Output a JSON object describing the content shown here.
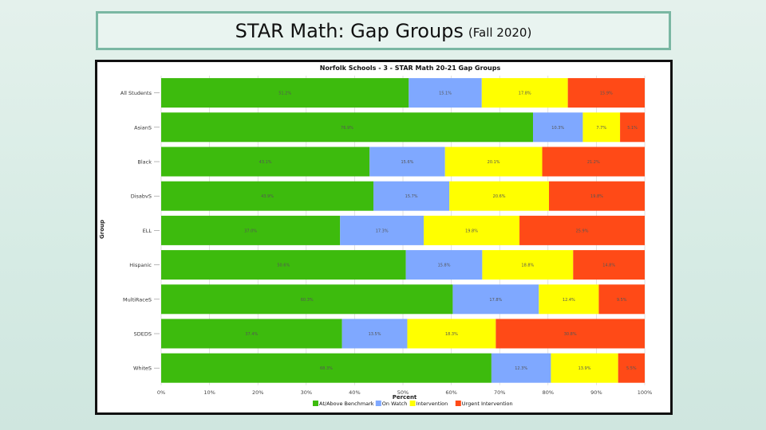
{
  "slide": {
    "title": "STAR Math: Gap Groups",
    "subtitle": "(Fall 2020)"
  },
  "chart_data": {
    "type": "bar",
    "orientation": "horizontal",
    "stacked": true,
    "title": "Norfolk Schools - 3 - STAR Math 20-21 Gap Groups",
    "xlabel": "Percent",
    "ylabel": "Group",
    "xlim": [
      0,
      100
    ],
    "x_ticks": [
      "0%",
      "10%",
      "20%",
      "30%",
      "40%",
      "50%",
      "60%",
      "70%",
      "80%",
      "90%",
      "100%"
    ],
    "categories": [
      "All Students",
      "AsianS",
      "Black",
      "DisabvS",
      "ELL",
      "Hispanic",
      "MultiRaceS",
      "SDEDS",
      "WhiteS"
    ],
    "series": [
      {
        "name": "At/Above Benchmark",
        "color": "#3dbb0d",
        "values": [
          51.2,
          76.9,
          43.1,
          43.9,
          37.0,
          50.6,
          60.3,
          37.4,
          68.3
        ]
      },
      {
        "name": "On Watch",
        "color": "#7fa8ff",
        "values": [
          15.1,
          10.3,
          15.6,
          15.7,
          17.3,
          15.8,
          17.8,
          13.5,
          12.3
        ]
      },
      {
        "name": "Intervention",
        "color": "#ffff00",
        "values": [
          17.8,
          7.7,
          20.1,
          20.6,
          19.8,
          18.8,
          12.4,
          18.3,
          13.9
        ]
      },
      {
        "name": "Urgent Intervention",
        "color": "#ff4a17",
        "values": [
          15.9,
          5.1,
          21.2,
          19.8,
          25.9,
          14.8,
          9.5,
          30.8,
          5.5
        ]
      }
    ],
    "legend": "bottom",
    "grid": true
  }
}
